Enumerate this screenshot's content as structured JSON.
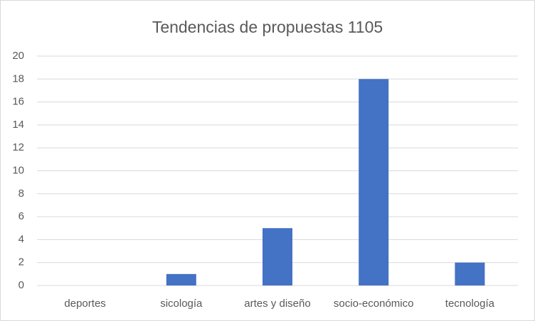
{
  "chart_data": {
    "type": "bar",
    "title": "Tendencias de propuestas 1105",
    "categories": [
      "deportes",
      "sicología",
      "artes y diseño",
      "socio-económico",
      "tecnología"
    ],
    "values": [
      0,
      1,
      5,
      18,
      2
    ],
    "color": "#4472c4",
    "ylim": [
      0,
      20
    ],
    "yticks": [
      0,
      2,
      4,
      6,
      8,
      10,
      12,
      14,
      16,
      18,
      20
    ],
    "grid": true
  }
}
